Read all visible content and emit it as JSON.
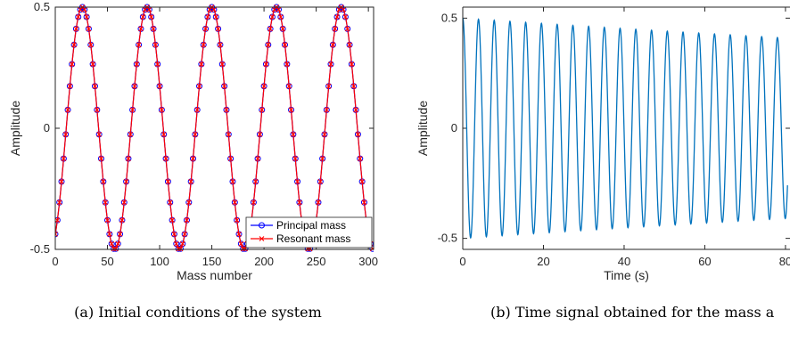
{
  "chart_data": [
    {
      "type": "line",
      "xlabel": "Mass number",
      "ylabel": "Amplitude",
      "xlim": [
        0,
        305
      ],
      "ylim": [
        -0.5,
        0.5
      ],
      "xticks": [
        0,
        50,
        100,
        150,
        200,
        250,
        300
      ],
      "yticks": [
        -0.5,
        0,
        0.5
      ],
      "ytick_labels": [
        "-0.5",
        "0",
        "0.5"
      ],
      "legend_position": "bottom-right",
      "caption": "(a) Initial conditions of the system",
      "series": [
        {
          "name": "Principal mass",
          "marker": "circle",
          "color": "#0000ff",
          "amplitude": 0.5,
          "period_masses": 62,
          "first_peak_mass": 26,
          "x_range": [
            0,
            304
          ]
        },
        {
          "name": "Resonant mass",
          "marker": "x",
          "color": "#ff0000",
          "amplitude": 0.5,
          "period_masses": 62,
          "first_trough_mass": 57,
          "x_range": [
            0,
            304
          ]
        }
      ]
    },
    {
      "type": "line",
      "xlabel": "Time (s)",
      "ylabel": "Amplitude",
      "xlim": [
        0,
        80
      ],
      "ylim": [
        -0.55,
        0.55
      ],
      "xticks": [
        0,
        20,
        40,
        60,
        80
      ],
      "yticks": [
        -0.5,
        0,
        0.5
      ],
      "ytick_labels": [
        "-0.5",
        "0",
        "0.5"
      ],
      "caption": "(b) Time signal obtained for the mass a",
      "series": [
        {
          "color": "#0072bd",
          "initial_amplitude": 0.5,
          "final_amplitude": 0.41,
          "period_s": 3.9,
          "first_peak_s": 3.9,
          "t_range": [
            0,
            80
          ],
          "end_value": -0.15
        }
      ]
    }
  ]
}
